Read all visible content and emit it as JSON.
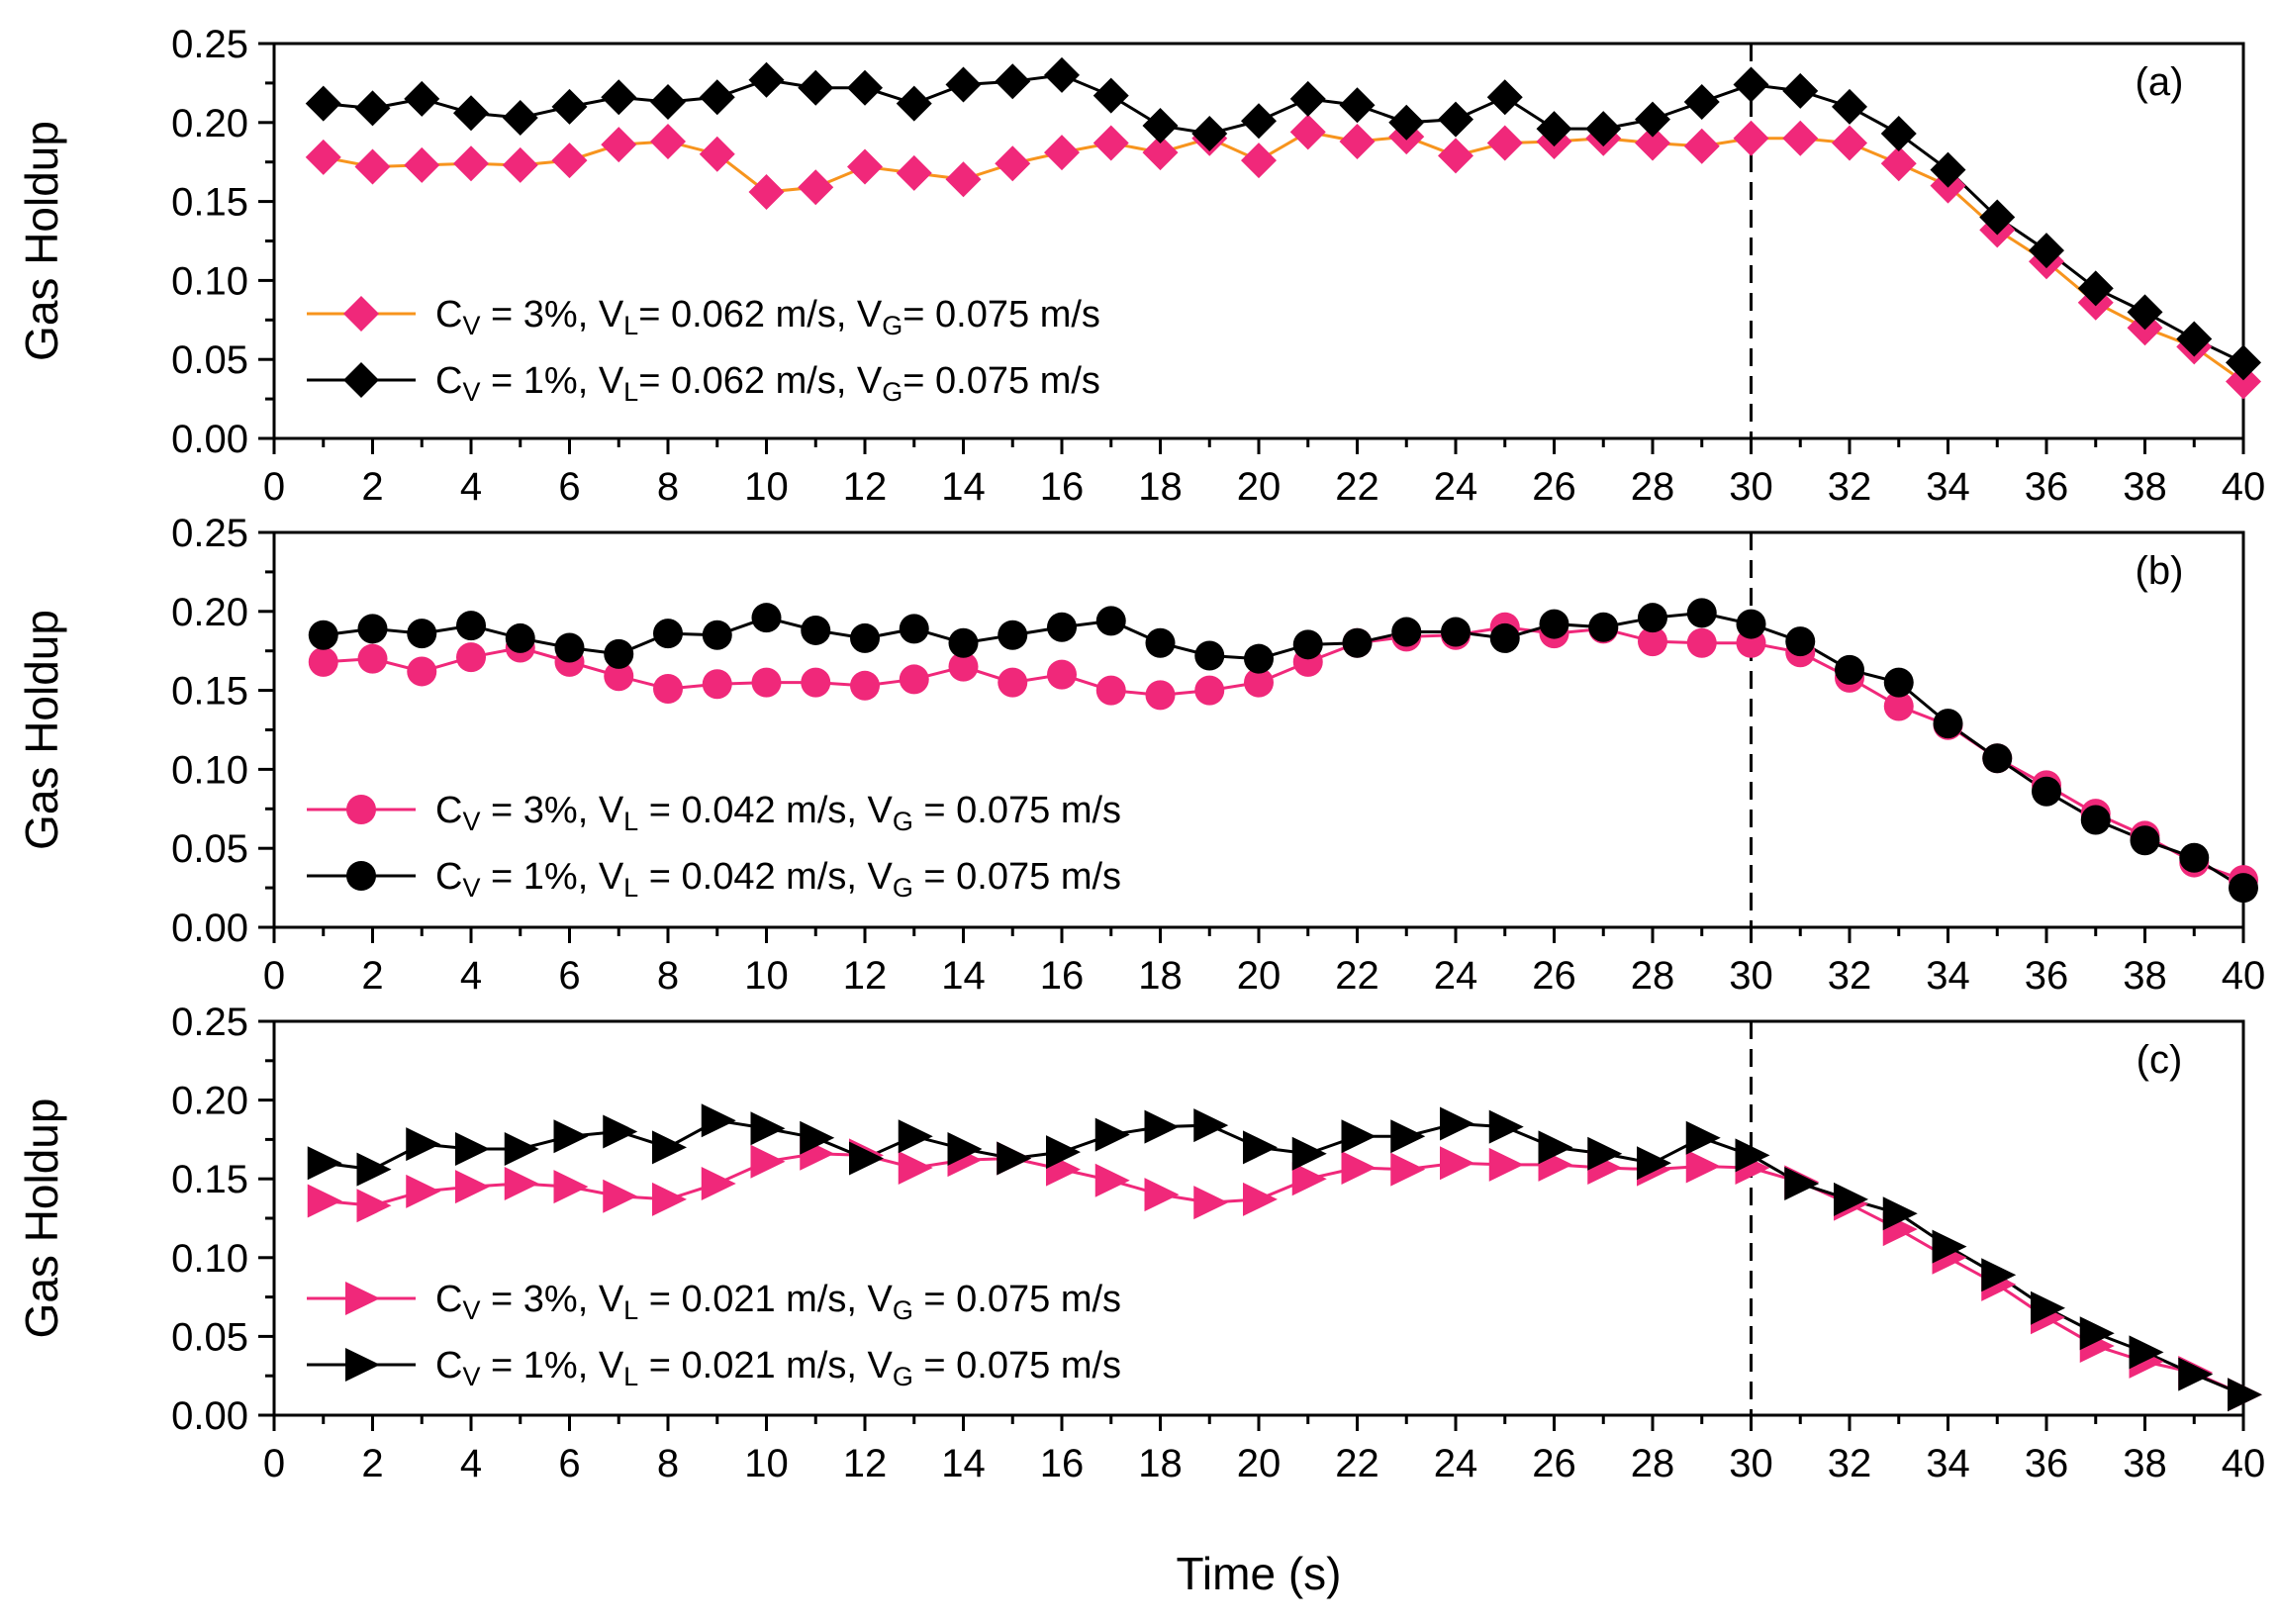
{
  "chart_data": [
    {
      "type": "line",
      "panel_label": "(a)",
      "ylabel": "Gas Holdup",
      "xlabel": "Time (s)",
      "xlim": [
        0,
        40
      ],
      "ylim": [
        0,
        0.25
      ],
      "x_ticks": [
        "0",
        "2",
        "4",
        "6",
        "8",
        "10",
        "12",
        "14",
        "16",
        "18",
        "20",
        "22",
        "24",
        "26",
        "28",
        "30",
        "32",
        "34",
        "36",
        "38",
        "40"
      ],
      "y_ticks": [
        "0.00",
        "0.05",
        "0.10",
        "0.15",
        "0.20",
        "0.25"
      ],
      "marker": "diamond",
      "reference_line_x": 30,
      "x": [
        1,
        2,
        3,
        4,
        5,
        6,
        7,
        8,
        9,
        10,
        11,
        12,
        13,
        14,
        15,
        16,
        17,
        18,
        19,
        20,
        21,
        22,
        23,
        24,
        25,
        26,
        27,
        28,
        29,
        30,
        31,
        32,
        33,
        34,
        35,
        36,
        37,
        38,
        39,
        40
      ],
      "series": [
        {
          "name": "Cv = 3%, VL = 0.062 m/s, VG = 0.075 m/s",
          "legend": {
            "c": "C",
            "c_sub": "V",
            "mid": " = 3%, V",
            "v_sub": "L",
            "mid2": "= 0.062 m/s, V",
            "g_sub": "G",
            "tail": "= 0.075 m/s"
          },
          "marker_color": "#f0287a",
          "line_color": "#f7941d",
          "values": [
            0.178,
            0.172,
            0.173,
            0.174,
            0.173,
            0.176,
            0.186,
            0.188,
            0.18,
            0.156,
            0.159,
            0.172,
            0.168,
            0.164,
            0.174,
            0.181,
            0.187,
            0.181,
            0.19,
            0.176,
            0.194,
            0.188,
            0.191,
            0.179,
            0.187,
            0.188,
            0.19,
            0.187,
            0.185,
            0.19,
            0.19,
            0.187,
            0.174,
            0.16,
            0.132,
            0.112,
            0.086,
            0.07,
            0.058,
            0.036
          ]
        },
        {
          "name": "Cv = 1%, VL = 0.062 m/s, VG = 0.075 m/s",
          "legend": {
            "c": "C",
            "c_sub": "V",
            "mid": " = 1%, V",
            "v_sub": "L",
            "mid2": "= 0.062 m/s, V",
            "g_sub": "G",
            "tail": "= 0.075 m/s"
          },
          "marker_color": "#000000",
          "line_color": "#000000",
          "values": [
            0.212,
            0.209,
            0.215,
            0.206,
            0.203,
            0.21,
            0.216,
            0.213,
            0.216,
            0.227,
            0.222,
            0.222,
            0.212,
            0.224,
            0.226,
            0.23,
            0.217,
            0.198,
            0.193,
            0.201,
            0.215,
            0.211,
            0.2,
            0.202,
            0.216,
            0.196,
            0.196,
            0.202,
            0.213,
            0.224,
            0.22,
            0.21,
            0.193,
            0.17,
            0.14,
            0.119,
            0.095,
            0.08,
            0.063,
            0.048
          ]
        }
      ]
    },
    {
      "type": "line",
      "panel_label": "(b)",
      "ylabel": "Gas Holdup",
      "xlabel": "Time (s)",
      "xlim": [
        0,
        40
      ],
      "ylim": [
        0,
        0.25
      ],
      "x_ticks": [
        "0",
        "2",
        "4",
        "6",
        "8",
        "10",
        "12",
        "14",
        "16",
        "18",
        "20",
        "22",
        "24",
        "26",
        "28",
        "30",
        "32",
        "34",
        "36",
        "38",
        "40"
      ],
      "y_ticks": [
        "0.00",
        "0.05",
        "0.10",
        "0.15",
        "0.20",
        "0.25"
      ],
      "marker": "circle",
      "reference_line_x": 30,
      "x": [
        1,
        2,
        3,
        4,
        5,
        6,
        7,
        8,
        9,
        10,
        11,
        12,
        13,
        14,
        15,
        16,
        17,
        18,
        19,
        20,
        21,
        22,
        23,
        24,
        25,
        26,
        27,
        28,
        29,
        30,
        31,
        32,
        33,
        34,
        35,
        36,
        37,
        38,
        39,
        40
      ],
      "series": [
        {
          "name": "Cv = 3%, VL = 0.042 m/s, VG = 0.075 m/s",
          "legend": {
            "c": "C",
            "c_sub": "V",
            "mid": " = 3%, V",
            "v_sub": "L",
            "mid2": " = 0.042 m/s, V",
            "g_sub": "G",
            "tail": " = 0.075 m/s"
          },
          "marker_color": "#f0287a",
          "line_color": "#f0287a",
          "values": [
            0.168,
            0.17,
            0.162,
            0.171,
            0.177,
            0.168,
            0.159,
            0.151,
            0.154,
            0.155,
            0.155,
            0.153,
            0.157,
            0.165,
            0.155,
            0.16,
            0.15,
            0.147,
            0.15,
            0.155,
            0.168,
            0.18,
            0.184,
            0.185,
            0.19,
            0.186,
            0.189,
            0.181,
            0.18,
            0.18,
            0.174,
            0.158,
            0.14,
            0.128,
            0.107,
            0.09,
            0.072,
            0.058,
            0.041,
            0.03
          ]
        },
        {
          "name": "Cv = 1%, VL = 0.042 m/s, VG = 0.075 m/s",
          "legend": {
            "c": "C",
            "c_sub": "V",
            "mid": " = 1%, V",
            "v_sub": "L",
            "mid2": " = 0.042 m/s, V",
            "g_sub": "G",
            "tail": " = 0.075 m/s"
          },
          "marker_color": "#000000",
          "line_color": "#000000",
          "values": [
            0.185,
            0.189,
            0.186,
            0.191,
            0.183,
            0.177,
            0.173,
            0.186,
            0.185,
            0.196,
            0.188,
            0.183,
            0.189,
            0.18,
            0.185,
            0.19,
            0.194,
            0.18,
            0.172,
            0.17,
            0.179,
            0.18,
            0.187,
            0.187,
            0.183,
            0.192,
            0.19,
            0.196,
            0.199,
            0.192,
            0.181,
            0.163,
            0.155,
            0.129,
            0.107,
            0.086,
            0.068,
            0.055,
            0.044,
            0.025
          ]
        }
      ]
    },
    {
      "type": "line",
      "panel_label": "(c)",
      "ylabel": "Gas Holdup",
      "xlabel": "Time (s)",
      "xlim": [
        0,
        40
      ],
      "ylim": [
        0,
        0.25
      ],
      "x_ticks": [
        "0",
        "2",
        "4",
        "6",
        "8",
        "10",
        "12",
        "14",
        "16",
        "18",
        "20",
        "22",
        "24",
        "26",
        "28",
        "30",
        "32",
        "34",
        "36",
        "38",
        "40"
      ],
      "y_ticks": [
        "0.00",
        "0.05",
        "0.10",
        "0.15",
        "0.20",
        "0.25"
      ],
      "marker": "triangle-right",
      "reference_line_x": 30,
      "x": [
        1,
        2,
        3,
        4,
        5,
        6,
        7,
        8,
        9,
        10,
        11,
        12,
        13,
        14,
        15,
        16,
        17,
        18,
        19,
        20,
        21,
        22,
        23,
        24,
        25,
        26,
        27,
        28,
        29,
        30,
        31,
        32,
        33,
        34,
        35,
        36,
        37,
        38,
        39,
        40
      ],
      "series": [
        {
          "name": "Cv = 3%, VL = 0.021 m/s, VG = 0.075 m/s",
          "legend": {
            "c": "C",
            "c_sub": "V",
            "mid": " = 3%, V",
            "v_sub": "L",
            "mid2": " = 0.021 m/s, V",
            "g_sub": "G",
            "tail": " = 0.075 m/s"
          },
          "marker_color": "#f0287a",
          "line_color": "#f0287a",
          "values": [
            0.136,
            0.133,
            0.142,
            0.145,
            0.147,
            0.145,
            0.139,
            0.137,
            0.147,
            0.161,
            0.166,
            0.165,
            0.157,
            0.162,
            0.163,
            0.156,
            0.149,
            0.14,
            0.135,
            0.137,
            0.15,
            0.157,
            0.156,
            0.16,
            0.159,
            0.159,
            0.157,
            0.156,
            0.158,
            0.157,
            0.148,
            0.134,
            0.118,
            0.1,
            0.083,
            0.062,
            0.044,
            0.034,
            0.027,
            0.013
          ]
        },
        {
          "name": "Cv = 1%, VL = 0.021 m/s, VG = 0.075 m/s",
          "legend": {
            "c": "C",
            "c_sub": "V",
            "mid": " = 1%, V",
            "v_sub": "L",
            "mid2": " = 0.021 m/s, V",
            "g_sub": "G",
            "tail": " = 0.075 m/s"
          },
          "marker_color": "#000000",
          "line_color": "#000000",
          "values": [
            0.16,
            0.156,
            0.172,
            0.169,
            0.169,
            0.177,
            0.18,
            0.17,
            0.187,
            0.182,
            0.176,
            0.163,
            0.177,
            0.169,
            0.163,
            0.167,
            0.178,
            0.183,
            0.184,
            0.17,
            0.166,
            0.177,
            0.177,
            0.185,
            0.183,
            0.17,
            0.166,
            0.16,
            0.176,
            0.165,
            0.147,
            0.137,
            0.128,
            0.107,
            0.089,
            0.068,
            0.052,
            0.04,
            0.026,
            0.013
          ]
        }
      ]
    }
  ]
}
